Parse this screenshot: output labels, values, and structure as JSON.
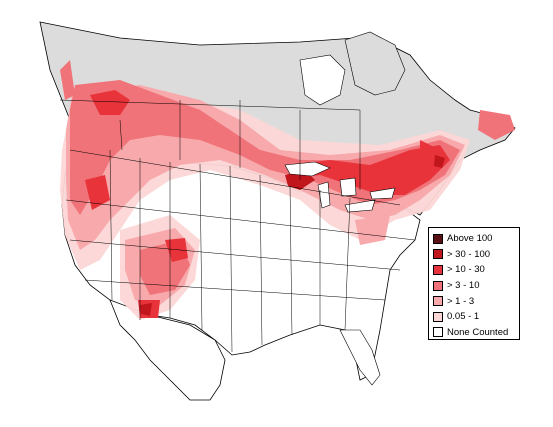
{
  "colors": {
    "above_100": "#5a0f12",
    "gt_30_100": "#c0161c",
    "gt_10_30": "#e8333a",
    "gt_3_10": "#ef7378",
    "gt_1_3": "#f7a9ab",
    "range_0_05_1": "#fcd6d6",
    "none_counted": "#ffffff",
    "no_data_north": "#dcdcdc",
    "boundary": "#000000"
  },
  "legend": {
    "items": [
      {
        "label": "Above 100",
        "color": "#5a0f12"
      },
      {
        "label": "> 30 - 100",
        "color": "#c0161c"
      },
      {
        "label": "> 10 - 30",
        "color": "#e8333a"
      },
      {
        "label": "> 3 - 10",
        "color": "#ef7378"
      },
      {
        "label": "> 1 - 3",
        "color": "#f7a9ab"
      },
      {
        "label": "0.05 - 1",
        "color": "#fcd6d6"
      },
      {
        "label": "None Counted",
        "color": "#ffffff"
      }
    ]
  }
}
